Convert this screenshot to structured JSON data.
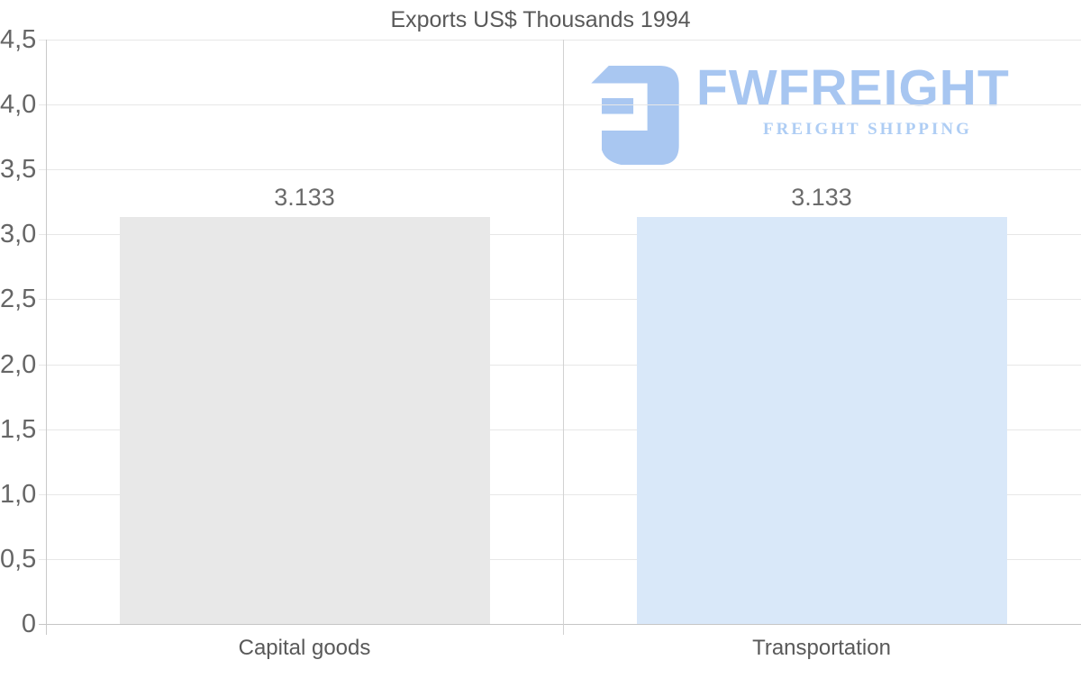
{
  "chart_data": {
    "type": "bar",
    "title": "Exports US$ Thousands 1994",
    "categories": [
      "Capital goods",
      "Transportation"
    ],
    "values": [
      3.133,
      3.133
    ],
    "value_labels": [
      "3.133",
      "3.133"
    ],
    "bar_colors": [
      "#e8e8e8",
      "#d9e8f9"
    ],
    "xlabel": "",
    "ylabel": "",
    "ylim": [
      0,
      4.5
    ],
    "grid": true,
    "legend": "none",
    "yticks": [
      {
        "value": 4.5,
        "label": "4,5"
      },
      {
        "value": 4.0,
        "label": "4,0"
      },
      {
        "value": 3.5,
        "label": "3,5"
      },
      {
        "value": 3.0,
        "label": "3,0"
      },
      {
        "value": 2.5,
        "label": "2,5"
      },
      {
        "value": 2.0,
        "label": "2,0"
      },
      {
        "value": 1.5,
        "label": "1,5"
      },
      {
        "value": 1.0,
        "label": "1,0"
      },
      {
        "value": 0.5,
        "label": "0,5"
      },
      {
        "value": 0,
        "label": "0"
      }
    ]
  },
  "logo": {
    "brand": "FWFREIGHT",
    "tagline": "FREIGHT SHIPPING",
    "brand_color": "#a7c6f1",
    "tagline_color": "#aecdf4",
    "icon_color": "#a9c7f1"
  },
  "colors": {
    "grid": "#e7e7e7",
    "axis": "#c9c9c9",
    "title_text": "#595959",
    "tick_text": "#666666",
    "value_text": "#6b6b6b",
    "category_text": "#595959",
    "background": "#ffffff"
  }
}
